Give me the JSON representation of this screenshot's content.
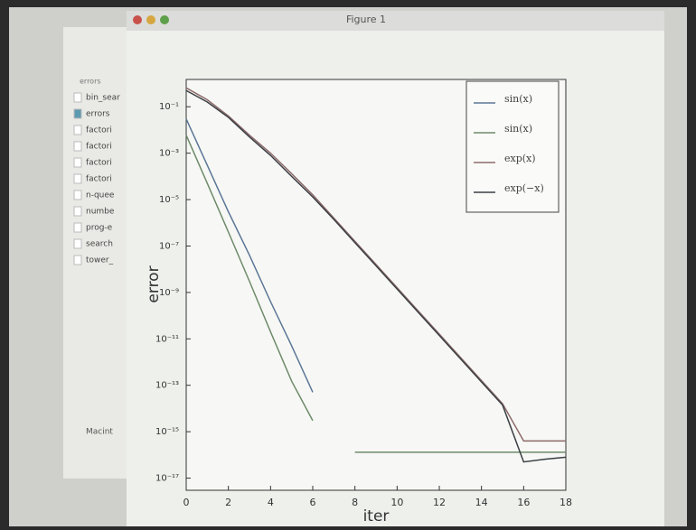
{
  "window": {
    "title": "Figure 1"
  },
  "sidebar": {
    "header": "errors",
    "items": [
      "bin_sear",
      "errors",
      "factori",
      "factori",
      "factori",
      "factori",
      "n-quee",
      "numbe",
      "prog-e",
      "search",
      "tower_"
    ],
    "drive": "Macint"
  },
  "chart_data": {
    "type": "line",
    "xlabel": "iter",
    "ylabel": "error",
    "log_y": true,
    "legend": "upper right",
    "x": [
      0,
      1,
      2,
      3,
      4,
      5,
      6,
      7,
      8,
      9,
      10,
      11,
      12,
      13,
      14,
      15,
      16,
      17,
      18
    ],
    "xlim": [
      0,
      18
    ],
    "xticks": [
      0,
      2,
      4,
      6,
      8,
      10,
      12,
      14,
      16,
      18
    ],
    "ylim": [
      3e-18,
      1.5
    ],
    "yticks": [
      {
        "value": 0.1,
        "label": "10⁻¹"
      },
      {
        "value": 0.001,
        "label": "10⁻³"
      },
      {
        "value": 1e-05,
        "label": "10⁻⁵"
      },
      {
        "value": 1e-07,
        "label": "10⁻⁷"
      },
      {
        "value": 1e-09,
        "label": "10⁻⁹"
      },
      {
        "value": 1e-11,
        "label": "10⁻¹¹"
      },
      {
        "value": 1e-13,
        "label": "10⁻¹³"
      },
      {
        "value": 1e-15,
        "label": "10⁻¹⁵"
      },
      {
        "value": 1e-17,
        "label": "10⁻¹⁷"
      }
    ],
    "series": [
      {
        "name": "sin(x)",
        "color": "#5b7696",
        "values": [
          0.03,
          0.0003,
          3e-06,
          4e-08,
          4e-10,
          5e-12,
          5e-14,
          null,
          null,
          null,
          null,
          null,
          null,
          null,
          null,
          null,
          null,
          null,
          null
        ]
      },
      {
        "name": "sin(x)",
        "color": "#6e8a6a",
        "values": [
          0.006,
          5e-05,
          4e-07,
          3e-09,
          2e-11,
          1.5e-13,
          3e-15,
          null,
          1.3e-16,
          1.3e-16,
          1.3e-16,
          1.3e-16,
          1.3e-16,
          1.3e-16,
          1.3e-16,
          1.3e-16,
          1.3e-16,
          1.3e-16,
          1.3e-16
        ]
      },
      {
        "name": "exp(x)",
        "color": "#8c6a6a",
        "values": [
          0.65,
          0.2,
          0.04,
          0.006,
          0.001,
          0.00013,
          1.6e-05,
          1.6e-06,
          1.6e-07,
          1.6e-08,
          1.6e-09,
          1.6e-10,
          1.6e-11,
          1.6e-12,
          1.6e-13,
          1.6e-14,
          4e-16,
          4e-16,
          4e-16
        ]
      },
      {
        "name": "exp(−x)",
        "color": "#3a3f44",
        "values": [
          0.5,
          0.16,
          0.035,
          0.005,
          0.0008,
          0.0001,
          1.3e-05,
          1.4e-06,
          1.4e-07,
          1.4e-08,
          1.4e-09,
          1.4e-10,
          1.4e-11,
          1.4e-12,
          1.4e-13,
          1.4e-14,
          5e-17,
          6.5e-17,
          8e-17
        ]
      }
    ]
  }
}
